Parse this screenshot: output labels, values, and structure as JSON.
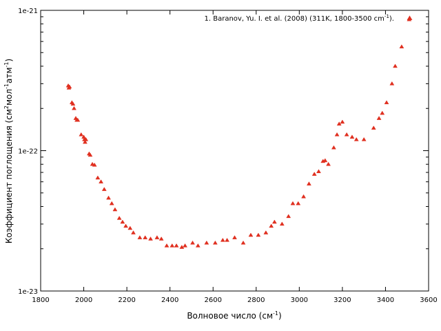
{
  "chart_data": {
    "type": "scatter",
    "xlabel_main": "Волновое число (см",
    "xlabel_sup": "-1",
    "xlabel_end": ")",
    "ylabel_a": "Коэффициент поглощения (см",
    "ylabel_sup1": "2",
    "ylabel_b": "мол",
    "ylabel_sup2": "-1",
    "ylabel_c": "атм",
    "ylabel_sup3": "-1",
    "ylabel_d": ")",
    "xlim": [
      1800,
      3600
    ],
    "ylim": [
      1e-23,
      1e-21
    ],
    "yscale": "log",
    "xticks": [
      "1800",
      "2000",
      "2200",
      "2400",
      "2600",
      "2800",
      "3000",
      "3200",
      "3400",
      "3600"
    ],
    "yticks": [
      "1e-23",
      "1e-22",
      "1e-21"
    ],
    "legend_position": "top-right",
    "legend_text": "1.  Baranov, Yu. I. et al. (2008) (311K, 1800-3500 cm",
    "legend_sup": "-1",
    "legend_end": ").",
    "marker_color": "#e03020",
    "series": [
      {
        "x": [
          1928,
          1931,
          1934,
          1945,
          1950,
          1955,
          1963,
          1968,
          1972,
          1988,
          2000,
          2003,
          2006,
          2010,
          2025,
          2030,
          2040,
          2050,
          2065,
          2080,
          2095,
          2115,
          2130,
          2145,
          2165,
          2180,
          2195,
          2215,
          2230,
          2260,
          2285,
          2310,
          2340,
          2360,
          2385,
          2410,
          2430,
          2455,
          2470,
          2505,
          2530,
          2570,
          2610,
          2645,
          2665,
          2700,
          2740,
          2775,
          2810,
          2845,
          2870,
          2885,
          2920,
          2950,
          2970,
          2995,
          3020,
          3045,
          3070,
          3090,
          3110,
          3120,
          3135,
          3160,
          3175,
          3185,
          3200,
          3220,
          3245,
          3265,
          3300,
          3345,
          3370,
          3385,
          3405,
          3430,
          3445,
          3475,
          3510
        ],
        "y": [
          2.9e-22,
          2.8e-22,
          2.85e-22,
          2.2e-22,
          2.15e-22,
          2e-22,
          1.7e-22,
          1.65e-22,
          1.65e-22,
          1.3e-22,
          1.25e-22,
          1.2e-22,
          1.15e-22,
          1.2e-22,
          9.5e-23,
          9.3e-23,
          8e-23,
          7.9e-23,
          6.4e-23,
          6e-23,
          5.3e-23,
          4.6e-23,
          4.2e-23,
          3.8e-23,
          3.3e-23,
          3.1e-23,
          2.9e-23,
          2.8e-23,
          2.6e-23,
          2.4e-23,
          2.4e-23,
          2.35e-23,
          2.4e-23,
          2.35e-23,
          2.1e-23,
          2.1e-23,
          2.1e-23,
          2.05e-23,
          2.1e-23,
          2.2e-23,
          2.1e-23,
          2.2e-23,
          2.2e-23,
          2.3e-23,
          2.3e-23,
          2.4e-23,
          2.2e-23,
          2.5e-23,
          2.5e-23,
          2.6e-23,
          2.9e-23,
          3.1e-23,
          3e-23,
          3.4e-23,
          4.2e-23,
          4.2e-23,
          4.7e-23,
          5.8e-23,
          6.8e-23,
          7.1e-23,
          8.4e-23,
          8.5e-23,
          8e-23,
          1.05e-22,
          1.3e-22,
          1.55e-22,
          1.6e-22,
          1.3e-22,
          1.25e-22,
          1.2e-22,
          1.2e-22,
          1.45e-22,
          1.7e-22,
          1.85e-22,
          2.2e-22,
          3e-22,
          4e-22,
          5.5e-22,
          8.6e-22
        ]
      }
    ]
  }
}
